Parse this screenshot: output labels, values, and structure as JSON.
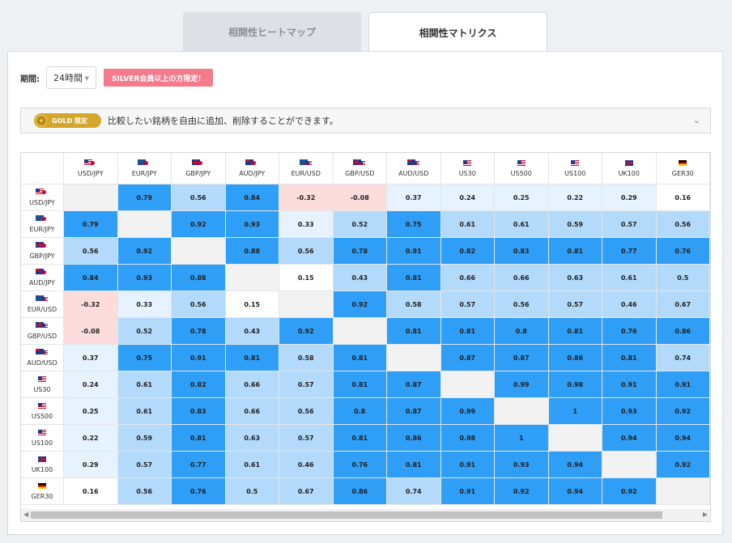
{
  "tabs": [
    {
      "label": "相関性ヒートマップ",
      "active": false
    },
    {
      "label": "相関性マトリクス",
      "active": true
    }
  ],
  "filter": {
    "period_label": "期間:",
    "period_value": "24時間",
    "silver_notice": "SILVER会員以上の方限定！"
  },
  "gold_bar": {
    "badge": "GOLD 限定",
    "text": "比較したい銘柄を自由に追加、削除することができます。"
  },
  "symbols": [
    {
      "label": "USD/JPY",
      "flag": "us-jp"
    },
    {
      "label": "EUR/JPY",
      "flag": "eu-jp"
    },
    {
      "label": "GBP/JPY",
      "flag": "gb-jp"
    },
    {
      "label": "AUD/JPY",
      "flag": "au-jp"
    },
    {
      "label": "EUR/USD",
      "flag": "eu-us"
    },
    {
      "label": "GBP/USD",
      "flag": "gb-us"
    },
    {
      "label": "AUD/USD",
      "flag": "au-us"
    },
    {
      "label": "US30",
      "flag": "us"
    },
    {
      "label": "US500",
      "flag": "us"
    },
    {
      "label": "US100",
      "flag": "us"
    },
    {
      "label": "UK100",
      "flag": "gb"
    },
    {
      "label": "GER30",
      "flag": "de"
    }
  ],
  "matrix": [
    [
      null,
      "0.79",
      "0.56",
      "0.84",
      "-0.32",
      "-0.08",
      "0.37",
      "0.24",
      "0.25",
      "0.22",
      "0.29",
      "0.16"
    ],
    [
      "0.79",
      null,
      "0.92",
      "0.93",
      "0.33",
      "0.52",
      "0.75",
      "0.61",
      "0.61",
      "0.59",
      "0.57",
      "0.56"
    ],
    [
      "0.56",
      "0.92",
      null,
      "0.88",
      "0.56",
      "0.78",
      "0.91",
      "0.82",
      "0.83",
      "0.81",
      "0.77",
      "0.76"
    ],
    [
      "0.84",
      "0.93",
      "0.88",
      null,
      "0.15",
      "0.43",
      "0.81",
      "0.66",
      "0.66",
      "0.63",
      "0.61",
      "0.5"
    ],
    [
      "-0.32",
      "0.33",
      "0.56",
      "0.15",
      null,
      "0.92",
      "0.58",
      "0.57",
      "0.56",
      "0.57",
      "0.46",
      "0.67"
    ],
    [
      "-0.08",
      "0.52",
      "0.78",
      "0.43",
      "0.92",
      null,
      "0.81",
      "0.81",
      "0.8",
      "0.81",
      "0.76",
      "0.86"
    ],
    [
      "0.37",
      "0.75",
      "0.91",
      "0.81",
      "0.58",
      "0.81",
      null,
      "0.87",
      "0.87",
      "0.86",
      "0.81",
      "0.74"
    ],
    [
      "0.24",
      "0.61",
      "0.82",
      "0.66",
      "0.57",
      "0.81",
      "0.87",
      null,
      "0.99",
      "0.98",
      "0.91",
      "0.91"
    ],
    [
      "0.25",
      "0.61",
      "0.83",
      "0.66",
      "0.56",
      "0.8",
      "0.87",
      "0.99",
      null,
      "1",
      "0.93",
      "0.92"
    ],
    [
      "0.22",
      "0.59",
      "0.81",
      "0.63",
      "0.57",
      "0.81",
      "0.86",
      "0.98",
      "1",
      null,
      "0.94",
      "0.94"
    ],
    [
      "0.29",
      "0.57",
      "0.77",
      "0.61",
      "0.46",
      "0.76",
      "0.81",
      "0.91",
      "0.93",
      "0.94",
      null,
      "0.92"
    ],
    [
      "0.16",
      "0.56",
      "0.76",
      "0.5",
      "0.67",
      "0.86",
      "0.74",
      "0.91",
      "0.92",
      "0.94",
      "0.92",
      null
    ]
  ],
  "colors": {
    "strong": "#2f9ef7",
    "medium": "#b3dafb",
    "weak": "#e6f2fd",
    "neutral": "#ffffff",
    "negative": "#fddcdc",
    "diagonal": "#f2f2f2"
  }
}
